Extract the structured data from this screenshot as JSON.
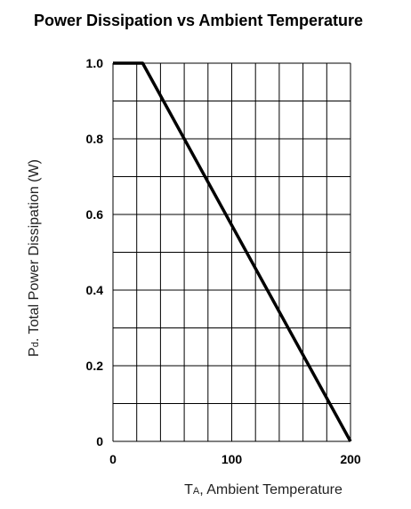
{
  "chart_data": {
    "type": "line",
    "title": "Power Dissipation vs Ambient Temperature",
    "ylabel_prefix": "P",
    "ylabel_subscript": "d",
    "ylabel_text": ". Total Power Dissipation (W)",
    "xlabel_prefix": "T",
    "xlabel_subscript": "A",
    "xlabel_text": ", Ambient Temperature",
    "xlim": [
      0,
      200
    ],
    "ylim": [
      0,
      1.0
    ],
    "x_ticks": [
      0,
      100,
      200
    ],
    "x_tick_labels": [
      "0",
      "100",
      "200"
    ],
    "y_ticks": [
      0,
      0.2,
      0.4,
      0.6,
      0.8,
      1.0
    ],
    "y_tick_labels": [
      "0",
      "0.2",
      "0.4",
      "0.6",
      "0.8",
      "1.0"
    ],
    "x_grid_step": 20,
    "y_grid_step": 0.1,
    "grid": true,
    "series": [
      {
        "x": [
          0,
          25,
          200
        ],
        "y": [
          1.0,
          1.0,
          0
        ]
      }
    ],
    "colors": {
      "line": "#000000",
      "grid": "#000000"
    }
  }
}
